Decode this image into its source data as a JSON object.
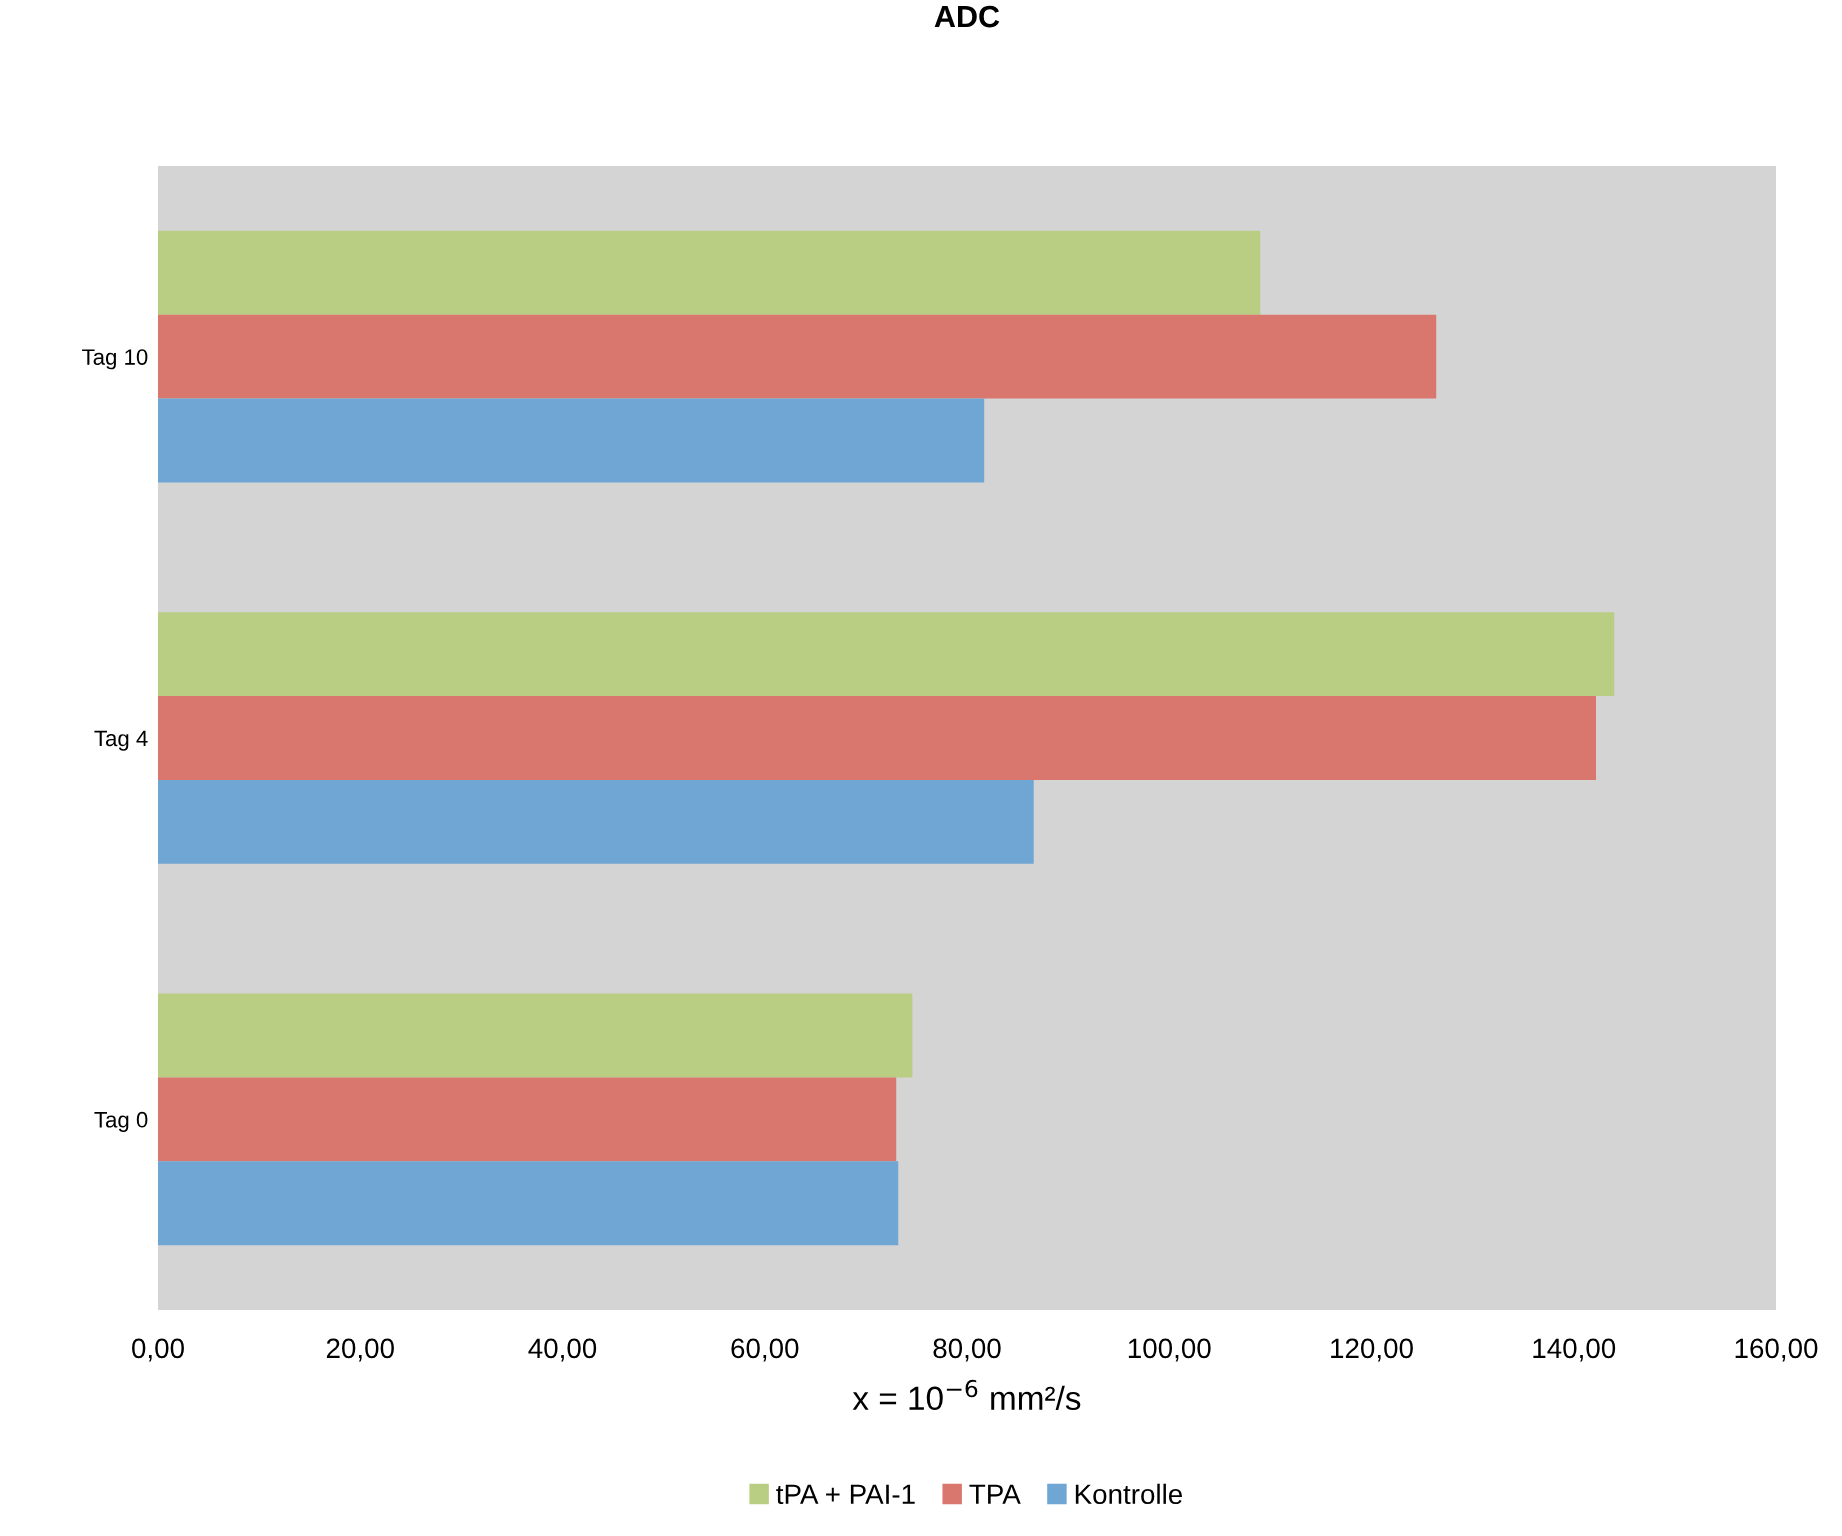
{
  "chart_data": {
    "type": "bar",
    "orientation": "horizontal",
    "title": "ADC",
    "xlabel": "x = 10$^{−6}$ mm²/s",
    "categories": [
      "Tag 10",
      "Tag 4",
      "Tag 0"
    ],
    "series": [
      {
        "name": "tPA + PAI-1",
        "color": "#b9ce82",
        "values": [
          109.0,
          144.0,
          74.6
        ]
      },
      {
        "name": "TPA",
        "color": "#d9776f",
        "values": [
          126.4,
          142.2,
          73.0
        ]
      },
      {
        "name": "Kontrolle",
        "color": "#70a6d4",
        "values": [
          81.7,
          86.6,
          73.2
        ]
      }
    ],
    "xlim": [
      0,
      160
    ],
    "xticks": [
      {
        "value": 0,
        "label": "0,00"
      },
      {
        "value": 20,
        "label": "20,00"
      },
      {
        "value": 40,
        "label": "40,00"
      },
      {
        "value": 60,
        "label": "60,00"
      },
      {
        "value": 80,
        "label": "80,00"
      },
      {
        "value": 100,
        "label": "100,00"
      },
      {
        "value": 120,
        "label": "120,00"
      },
      {
        "value": 140,
        "label": "140,00"
      },
      {
        "value": 160,
        "label": "160,00"
      }
    ],
    "legend": "bottom",
    "grid": false
  }
}
